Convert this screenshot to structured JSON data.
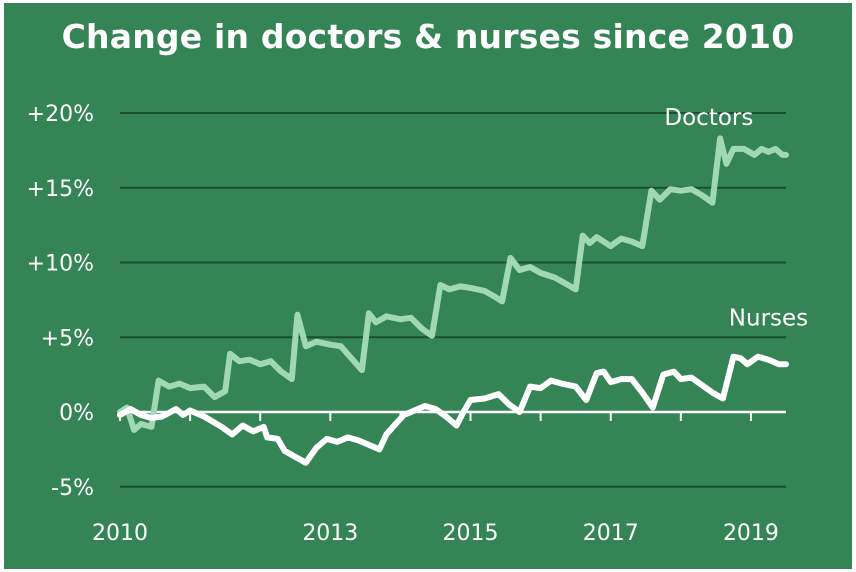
{
  "colors": {
    "background": "#348455",
    "gridline": "#1b4f2f",
    "axis": "#ffffff",
    "text": "#ffffff",
    "doctors": "#9fd8b2",
    "nurses": "#ffffff"
  },
  "chart_data": {
    "type": "line",
    "title": "Change in doctors & nurses since 2010",
    "xlabel": "",
    "ylabel": "",
    "x_range": [
      2010.0,
      2019.5
    ],
    "y_range": [
      -6.5,
      20.5
    ],
    "y_ticks": [
      -5,
      0,
      5,
      10,
      15,
      20
    ],
    "y_tick_labels": [
      "-5%",
      "0%",
      "+5%",
      "+10%",
      "+15%",
      "+20%"
    ],
    "x_ticks": [
      2010,
      2011,
      2012,
      2013,
      2014,
      2015,
      2016,
      2017,
      2018,
      2019
    ],
    "x_tick_labels": [
      {
        "year": 2010,
        "label": "2010"
      },
      {
        "year": 2013,
        "label": "2013"
      },
      {
        "year": 2015,
        "label": "2015"
      },
      {
        "year": 2017,
        "label": "2017"
      },
      {
        "year": 2019,
        "label": "2019"
      }
    ],
    "grid": "horizontal",
    "series": [
      {
        "name": "Doctors",
        "color": "#9fd8b2",
        "points": [
          [
            2010.0,
            0.0
          ],
          [
            2010.1,
            0.3
          ],
          [
            2010.2,
            -1.2
          ],
          [
            2010.3,
            -0.8
          ],
          [
            2010.45,
            -1.0
          ],
          [
            2010.55,
            2.1
          ],
          [
            2010.7,
            1.7
          ],
          [
            2010.85,
            1.9
          ],
          [
            2011.0,
            1.6
          ],
          [
            2011.2,
            1.7
          ],
          [
            2011.35,
            1.0
          ],
          [
            2011.5,
            1.4
          ],
          [
            2011.57,
            3.9
          ],
          [
            2011.7,
            3.4
          ],
          [
            2011.85,
            3.5
          ],
          [
            2012.0,
            3.2
          ],
          [
            2012.15,
            3.4
          ],
          [
            2012.3,
            2.7
          ],
          [
            2012.45,
            2.2
          ],
          [
            2012.53,
            6.5
          ],
          [
            2012.65,
            4.4
          ],
          [
            2012.8,
            4.7
          ],
          [
            2013.0,
            4.5
          ],
          [
            2013.15,
            4.4
          ],
          [
            2013.3,
            3.6
          ],
          [
            2013.45,
            2.8
          ],
          [
            2013.55,
            6.6
          ],
          [
            2013.65,
            6.0
          ],
          [
            2013.8,
            6.4
          ],
          [
            2014.0,
            6.2
          ],
          [
            2014.15,
            6.3
          ],
          [
            2014.3,
            5.6
          ],
          [
            2014.45,
            5.1
          ],
          [
            2014.57,
            8.5
          ],
          [
            2014.7,
            8.2
          ],
          [
            2014.85,
            8.4
          ],
          [
            2015.0,
            8.3
          ],
          [
            2015.2,
            8.1
          ],
          [
            2015.35,
            7.7
          ],
          [
            2015.45,
            7.4
          ],
          [
            2015.57,
            10.3
          ],
          [
            2015.7,
            9.5
          ],
          [
            2015.85,
            9.7
          ],
          [
            2016.0,
            9.3
          ],
          [
            2016.2,
            9.0
          ],
          [
            2016.35,
            8.6
          ],
          [
            2016.5,
            8.2
          ],
          [
            2016.6,
            11.8
          ],
          [
            2016.7,
            11.3
          ],
          [
            2016.8,
            11.7
          ],
          [
            2017.0,
            11.1
          ],
          [
            2017.15,
            11.6
          ],
          [
            2017.3,
            11.4
          ],
          [
            2017.45,
            11.1
          ],
          [
            2017.58,
            14.8
          ],
          [
            2017.7,
            14.2
          ],
          [
            2017.85,
            14.9
          ],
          [
            2018.0,
            14.8
          ],
          [
            2018.15,
            14.9
          ],
          [
            2018.3,
            14.5
          ],
          [
            2018.45,
            14.0
          ],
          [
            2018.56,
            18.3
          ],
          [
            2018.65,
            16.6
          ],
          [
            2018.75,
            17.6
          ],
          [
            2018.9,
            17.6
          ],
          [
            2019.05,
            17.2
          ],
          [
            2019.15,
            17.6
          ],
          [
            2019.25,
            17.4
          ],
          [
            2019.35,
            17.6
          ],
          [
            2019.45,
            17.2
          ],
          [
            2019.5,
            17.2
          ]
        ]
      },
      {
        "name": "Nurses",
        "color": "#ffffff",
        "points": [
          [
            2010.0,
            -0.2
          ],
          [
            2010.15,
            0.2
          ],
          [
            2010.3,
            -0.2
          ],
          [
            2010.45,
            -0.4
          ],
          [
            2010.6,
            -0.3
          ],
          [
            2010.8,
            0.2
          ],
          [
            2010.9,
            -0.2
          ],
          [
            2011.0,
            0.1
          ],
          [
            2011.2,
            -0.3
          ],
          [
            2011.45,
            -1.0
          ],
          [
            2011.6,
            -1.5
          ],
          [
            2011.75,
            -0.9
          ],
          [
            2011.9,
            -1.3
          ],
          [
            2012.05,
            -1.0
          ],
          [
            2012.1,
            -1.7
          ],
          [
            2012.25,
            -1.8
          ],
          [
            2012.35,
            -2.6
          ],
          [
            2012.5,
            -3.0
          ],
          [
            2012.65,
            -3.4
          ],
          [
            2012.8,
            -2.4
          ],
          [
            2012.95,
            -1.8
          ],
          [
            2013.1,
            -2.0
          ],
          [
            2013.25,
            -1.7
          ],
          [
            2013.4,
            -1.9
          ],
          [
            2013.55,
            -2.2
          ],
          [
            2013.7,
            -2.5
          ],
          [
            2013.8,
            -1.5
          ],
          [
            2013.95,
            -0.7
          ],
          [
            2014.05,
            -0.2
          ],
          [
            2014.2,
            0.1
          ],
          [
            2014.35,
            0.4
          ],
          [
            2014.5,
            0.2
          ],
          [
            2014.65,
            -0.3
          ],
          [
            2014.8,
            -0.9
          ],
          [
            2014.9,
            0.0
          ],
          [
            2015.0,
            0.8
          ],
          [
            2015.2,
            0.9
          ],
          [
            2015.4,
            1.2
          ],
          [
            2015.55,
            0.5
          ],
          [
            2015.7,
            0.0
          ],
          [
            2015.85,
            1.7
          ],
          [
            2016.0,
            1.6
          ],
          [
            2016.15,
            2.1
          ],
          [
            2016.3,
            1.9
          ],
          [
            2016.5,
            1.7
          ],
          [
            2016.65,
            0.8
          ],
          [
            2016.8,
            2.6
          ],
          [
            2016.9,
            2.7
          ],
          [
            2017.0,
            2.0
          ],
          [
            2017.15,
            2.2
          ],
          [
            2017.3,
            2.2
          ],
          [
            2017.45,
            1.3
          ],
          [
            2017.6,
            0.3
          ],
          [
            2017.75,
            2.5
          ],
          [
            2017.9,
            2.7
          ],
          [
            2018.0,
            2.2
          ],
          [
            2018.15,
            2.3
          ],
          [
            2018.3,
            1.8
          ],
          [
            2018.45,
            1.3
          ],
          [
            2018.6,
            0.9
          ],
          [
            2018.75,
            3.7
          ],
          [
            2018.85,
            3.6
          ],
          [
            2018.95,
            3.2
          ],
          [
            2019.1,
            3.7
          ],
          [
            2019.25,
            3.5
          ],
          [
            2019.4,
            3.2
          ],
          [
            2019.5,
            3.2
          ]
        ]
      }
    ]
  }
}
